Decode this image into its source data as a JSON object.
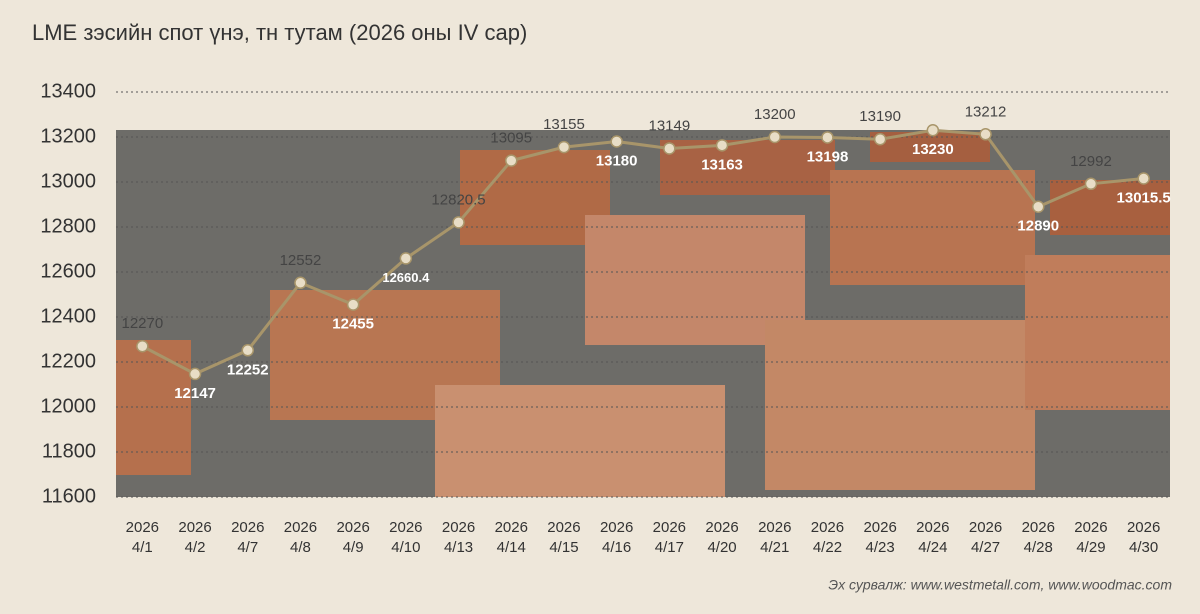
{
  "chart_data": {
    "type": "line",
    "title": "LME зэсийн спот үнэ, тн тутам (2026 оны IV сар)",
    "source": "Эх сурвалж: www.westmetall.com, www.woodmac.com",
    "categories": [
      "2026\n4/1",
      "2026\n4/2",
      "2026\n4/7",
      "2026\n4/8",
      "2026\n4/9",
      "2026\n4/10",
      "2026\n4/13",
      "2026\n4/14",
      "2026\n4/15",
      "2026\n4/16",
      "2026\n4/17",
      "2026\n4/20",
      "2026\n4/21",
      "2026\n4/22",
      "2026\n4/23",
      "2026\n4/24",
      "2026\n4/27",
      "2026\n4/28",
      "2026\n4/29",
      "2026\n4/30"
    ],
    "values": [
      12270,
      12147,
      12252,
      12552,
      12455,
      12660.4,
      12820.5,
      13095,
      13155,
      13180,
      13149,
      13163,
      13200,
      13198,
      13190,
      13230,
      13212,
      12890,
      12992,
      13015.5
    ],
    "color": "#a8956a",
    "ylim": [
      11600,
      13400
    ],
    "yticks": [
      11600,
      11800,
      12000,
      12200,
      12400,
      12600,
      12800,
      13000,
      13200,
      13400
    ],
    "grid": true
  }
}
